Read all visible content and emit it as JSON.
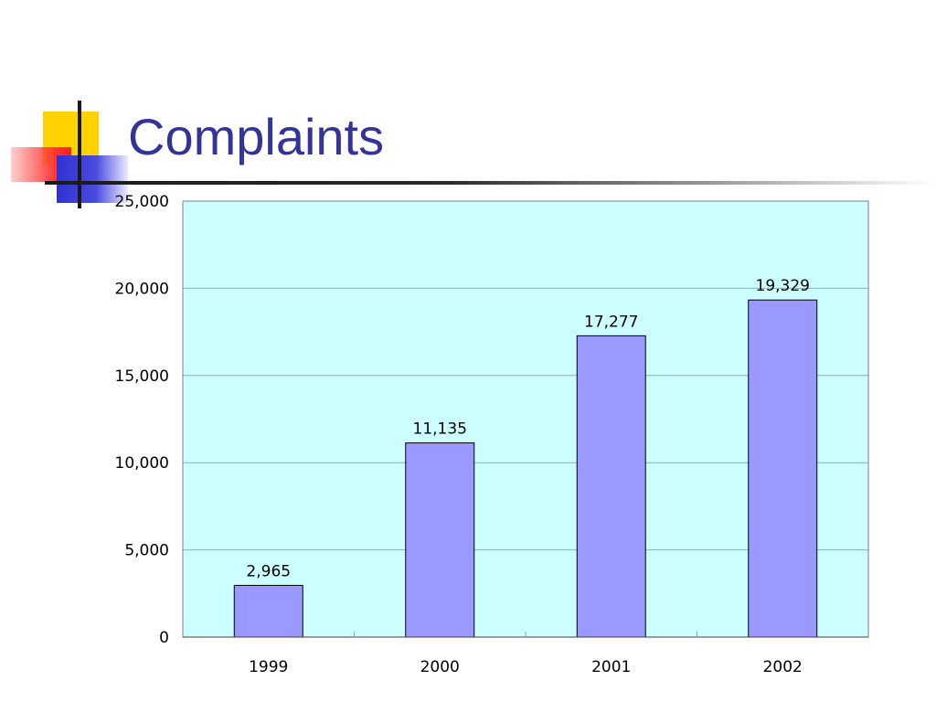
{
  "slide": {
    "title": "Complaints"
  },
  "colors": {
    "title": "#33339a",
    "plot_background": "#ccffff",
    "bar_fill": "#9999ff",
    "bar_stroke": "#000000",
    "gridline": "#8ab0b0"
  },
  "chart_data": {
    "type": "bar",
    "title": "",
    "xlabel": "",
    "ylabel": "",
    "categories": [
      "1999",
      "2000",
      "2001",
      "2002"
    ],
    "values": [
      2965,
      11135,
      17277,
      19329
    ],
    "value_labels": [
      "2,965",
      "11,135",
      "17,277",
      "19,329"
    ],
    "ylim": [
      0,
      25000
    ],
    "yticks": [
      0,
      5000,
      10000,
      15000,
      20000,
      25000
    ],
    "ytick_labels": [
      "0",
      "5,000",
      "10,000",
      "15,000",
      "20,000",
      "25,000"
    ],
    "grid": true,
    "legend": "none"
  }
}
